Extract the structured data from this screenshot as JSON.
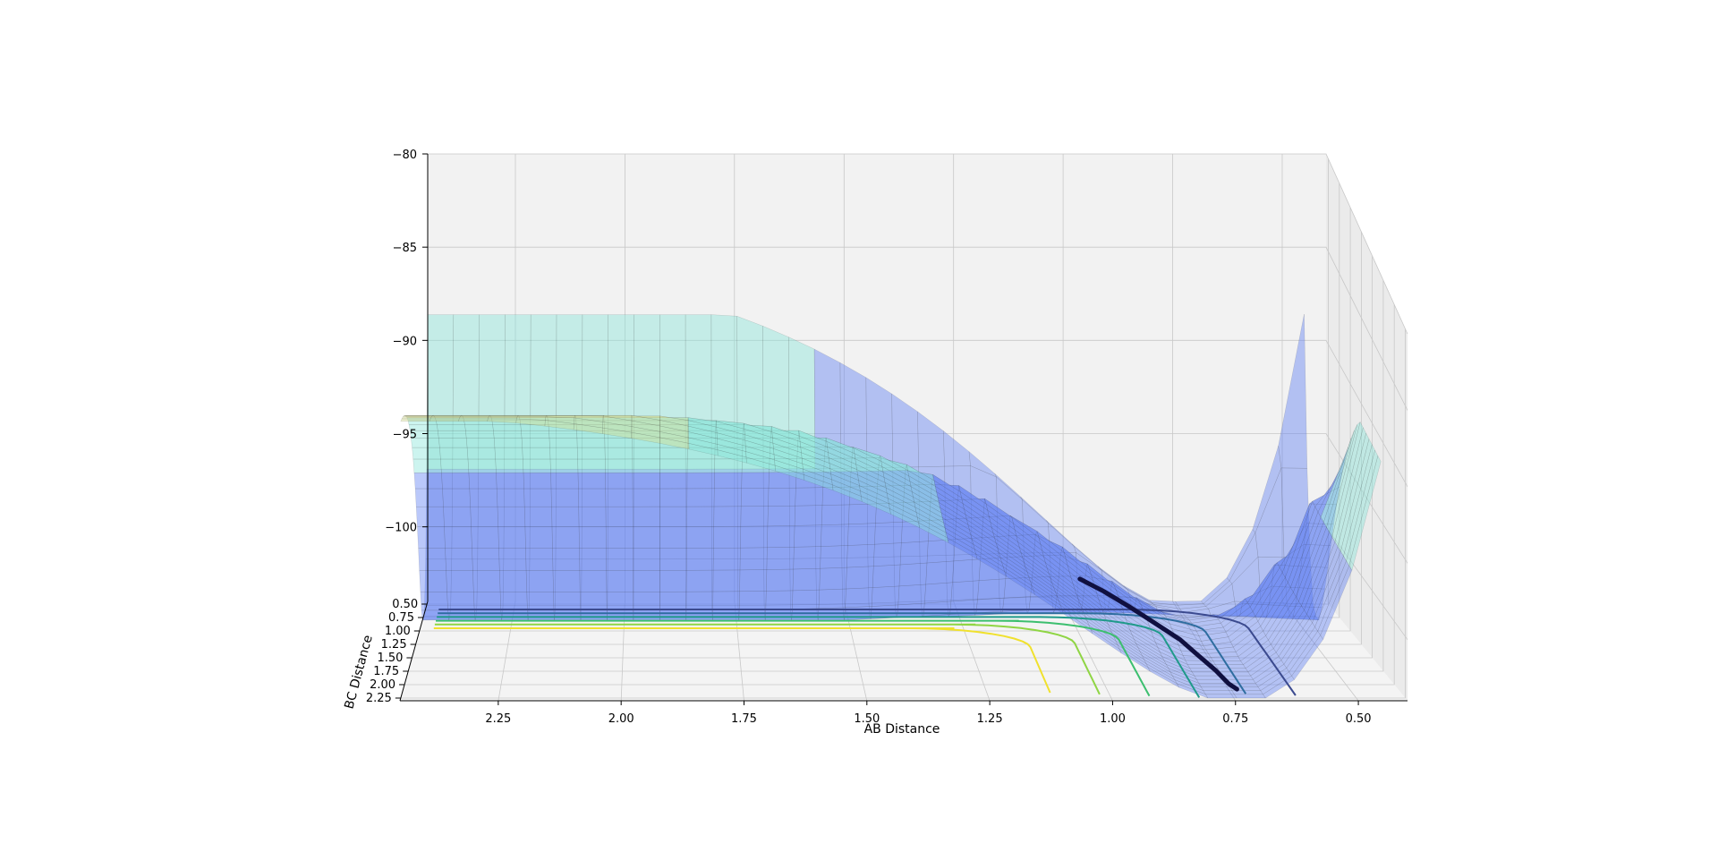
{
  "chart_data": {
    "type": "surface3d",
    "xlabel": "AB Distance",
    "ylabel": "BC Distance",
    "zlabel": "",
    "title": "",
    "x_ticks": [
      "2.25",
      "2.00",
      "1.75",
      "1.50",
      "1.25",
      "1.00",
      "0.75",
      "0.50"
    ],
    "y_ticks": [
      "0.50",
      "0.75",
      "1.00",
      "1.25",
      "1.50",
      "1.75",
      "2.00",
      "2.25"
    ],
    "z_ticks": [
      "−80",
      "−85",
      "−90",
      "−95",
      "−100"
    ],
    "z_range": [
      -104,
      -80
    ],
    "z_clip": -82,
    "x_range": [
      0.4,
      2.45
    ],
    "y_range": [
      0.45,
      2.3
    ],
    "colormap": "jet",
    "surface_bands": [
      {
        "level": -82,
        "color": "#ee8a78"
      },
      {
        "level": -88,
        "color": "#d7dd8e"
      },
      {
        "level": -93.5,
        "color": "#86e4da"
      },
      {
        "level": -97,
        "color": "#5a7bf2"
      }
    ],
    "contour_levels": [
      -102,
      -100,
      -98,
      -96,
      -94,
      -92
    ],
    "contour_colors": [
      "#3b4a8f",
      "#2e6da0",
      "#1f9a8a",
      "#3cbf6f",
      "#8fd544",
      "#f0e12d"
    ],
    "trajectory": {
      "color": "#101040",
      "points": [
        [
          0.98,
          0.74,
          -101.9
        ],
        [
          0.93,
          0.8,
          -102.4
        ],
        [
          0.88,
          0.92,
          -102.9
        ],
        [
          0.84,
          1.1,
          -103.2
        ],
        [
          0.8,
          1.35,
          -103.4
        ],
        [
          0.78,
          1.6,
          -103.5
        ],
        [
          0.76,
          1.85,
          -103.6
        ],
        [
          0.75,
          2.1,
          -103.6
        ],
        [
          0.74,
          2.2,
          -103.6
        ]
      ]
    },
    "grid": true,
    "view": {
      "elev": 5,
      "azim": 95
    }
  }
}
